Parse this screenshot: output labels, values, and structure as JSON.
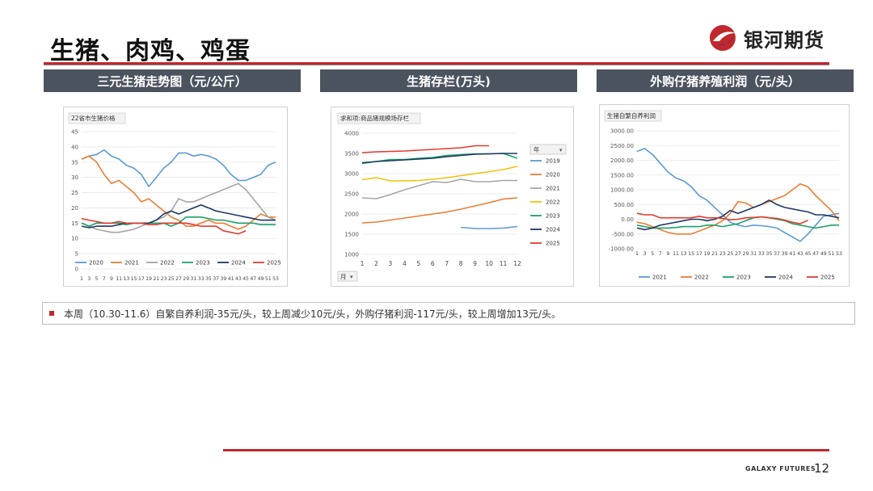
{
  "page": {
    "title": "生猪、肉鸡、鸡蛋",
    "logo_text": "银河期货",
    "footer_brand": "GALAXY FUTURES",
    "page_number": "12",
    "accent": "#c0282d"
  },
  "headers": [
    "三元生猪走势图（元/公斤）",
    "生猪存栏(万头)",
    "外购仔猪养殖利润（元/头）"
  ],
  "note": "本周（10.30-11.6）自繁自养利润-35元/头，较上周减少10元/头，外购仔猪利润-117元/头，较上周增加13元/头。",
  "chart_data": [
    {
      "type": "line",
      "title": "22省市生猪价格",
      "x_tick_labels": [
        "1",
        "3",
        "5",
        "7",
        "9",
        "11",
        "13",
        "15",
        "17",
        "19",
        "21",
        "23",
        "25",
        "27",
        "29",
        "31",
        "33",
        "35",
        "37",
        "39",
        "41",
        "43",
        "45",
        "47",
        "49",
        "51",
        "53"
      ],
      "xlim": [
        1,
        53
      ],
      "ylim": [
        0,
        45
      ],
      "yticks": [
        0,
        5,
        10,
        15,
        20,
        25,
        30,
        35,
        40,
        45
      ],
      "legend_position": "bottom",
      "series": [
        {
          "name": "2020",
          "color": "#5b9bd5",
          "x": [
            1,
            3,
            5,
            7,
            9,
            11,
            13,
            15,
            17,
            19,
            21,
            23,
            25,
            27,
            29,
            31,
            33,
            35,
            37,
            39,
            41,
            43,
            45,
            47,
            49,
            51,
            53
          ],
          "values": [
            36,
            37,
            37.5,
            39,
            37,
            36,
            34,
            33,
            31,
            27,
            30,
            33,
            35,
            38,
            38,
            37,
            37.5,
            37,
            36,
            34,
            31,
            29,
            29,
            30,
            31,
            34,
            35
          ]
        },
        {
          "name": "2021",
          "color": "#ed7d31",
          "x": [
            1,
            3,
            5,
            7,
            9,
            11,
            13,
            15,
            17,
            19,
            21,
            23,
            25,
            27,
            29,
            31,
            33,
            35,
            37,
            39,
            41,
            43,
            45,
            47,
            49,
            51,
            53
          ],
          "values": [
            36,
            37,
            35,
            31,
            28,
            29,
            27,
            25,
            22,
            23,
            21,
            19,
            17,
            16,
            14,
            14,
            15,
            16,
            15,
            15,
            14,
            13,
            14,
            16,
            18,
            17,
            17
          ]
        },
        {
          "name": "2022",
          "color": "#a5a5a5",
          "x": [
            1,
            3,
            5,
            7,
            9,
            11,
            13,
            15,
            17,
            19,
            21,
            23,
            25,
            27,
            29,
            31,
            33,
            35,
            37,
            39,
            41,
            43,
            45,
            47,
            49,
            51,
            53
          ],
          "values": [
            15,
            14,
            13,
            12.5,
            12,
            12,
            12.5,
            13,
            14,
            15,
            16,
            17,
            19,
            23,
            22,
            22,
            23,
            24,
            25,
            26,
            27,
            28,
            26,
            23,
            20,
            17,
            16
          ]
        },
        {
          "name": "2023",
          "color": "#1aa368",
          "x": [
            1,
            3,
            5,
            7,
            9,
            11,
            13,
            15,
            17,
            19,
            21,
            23,
            25,
            27,
            29,
            31,
            33,
            35,
            37,
            39,
            41,
            43,
            45,
            47,
            49,
            51,
            53
          ],
          "values": [
            15,
            14,
            15,
            15,
            15,
            15,
            14.5,
            15,
            15,
            15,
            15,
            15,
            14,
            15,
            17,
            17,
            17,
            16.5,
            16,
            16,
            15.5,
            15,
            15,
            15,
            14.5,
            14.5,
            14.5
          ]
        },
        {
          "name": "2024",
          "color": "#1f3864",
          "x": [
            1,
            3,
            5,
            7,
            9,
            11,
            13,
            15,
            17,
            19,
            21,
            23,
            25,
            27,
            29,
            31,
            33,
            35,
            37,
            39,
            41,
            43,
            45,
            47,
            49,
            51,
            53
          ],
          "values": [
            14,
            13.5,
            14,
            14,
            14,
            14.5,
            15,
            15,
            15,
            15,
            16,
            18,
            19,
            18,
            19,
            20,
            21,
            20,
            19,
            18.5,
            18,
            17.5,
            17,
            16.5,
            16,
            16,
            16
          ]
        },
        {
          "name": "2025",
          "color": "#e23b2e",
          "x": [
            1,
            3,
            5,
            7,
            9,
            11,
            13,
            15,
            17,
            19,
            21,
            23,
            25,
            27,
            29,
            31,
            33,
            35,
            37,
            39,
            41,
            43,
            45
          ],
          "values": [
            16.5,
            16,
            15.5,
            15,
            15,
            15.5,
            15,
            15,
            15,
            14.5,
            14.5,
            15,
            15,
            15,
            15,
            14.5,
            14,
            14,
            14,
            12.5,
            12,
            11.5,
            12.5
          ]
        }
      ]
    },
    {
      "type": "line",
      "title": "求和项:商品猪规模场存栏",
      "filter_label": "月",
      "legend_title": "年",
      "x_tick_labels": [
        "1",
        "2",
        "3",
        "4",
        "5",
        "6",
        "7",
        "8",
        "9",
        "10",
        "11",
        "12"
      ],
      "xlim": [
        1,
        12
      ],
      "ylim": [
        1000,
        4000
      ],
      "yticks": [
        1000,
        1500,
        2000,
        2500,
        3000,
        3500,
        4000
      ],
      "legend_position": "right",
      "series": [
        {
          "name": "2019",
          "color": "#5b9bd5",
          "x": [
            8,
            9,
            10,
            11,
            12
          ],
          "values": [
            1670,
            1640,
            1640,
            1650,
            1690
          ]
        },
        {
          "name": "2020",
          "color": "#ed7d31",
          "x": [
            1,
            2,
            3,
            4,
            5,
            6,
            7,
            8,
            9,
            10,
            11,
            12
          ],
          "values": [
            1780,
            1800,
            1850,
            1900,
            1950,
            2000,
            2050,
            2120,
            2200,
            2280,
            2370,
            2400
          ]
        },
        {
          "name": "2021",
          "color": "#a5a5a5",
          "x": [
            1,
            2,
            3,
            4,
            5,
            6,
            7,
            8,
            9,
            10,
            11,
            12
          ],
          "values": [
            2400,
            2380,
            2480,
            2600,
            2700,
            2800,
            2780,
            2860,
            2800,
            2800,
            2830,
            2830
          ]
        },
        {
          "name": "2022",
          "color": "#f2c20b",
          "x": [
            1,
            2,
            3,
            4,
            5,
            6,
            7,
            8,
            9,
            10,
            11,
            12
          ],
          "values": [
            2850,
            2900,
            2820,
            2820,
            2830,
            2860,
            2900,
            2950,
            3000,
            3050,
            3100,
            3180
          ]
        },
        {
          "name": "2023",
          "color": "#1aa368",
          "x": [
            1,
            2,
            3,
            4,
            5,
            6,
            7,
            8,
            9,
            10,
            11,
            12
          ],
          "values": [
            3250,
            3300,
            3350,
            3350,
            3380,
            3400,
            3450,
            3470,
            3490,
            3490,
            3500,
            3380
          ]
        },
        {
          "name": "2024",
          "color": "#1f3864",
          "x": [
            1,
            2,
            3,
            4,
            5,
            6,
            7,
            8,
            9,
            10,
            11,
            12
          ],
          "values": [
            3270,
            3300,
            3320,
            3340,
            3360,
            3380,
            3420,
            3450,
            3480,
            3490,
            3500,
            3500
          ]
        },
        {
          "name": "2025",
          "color": "#e23b2e",
          "x": [
            1,
            2,
            3,
            4,
            5,
            6,
            7,
            8,
            9,
            10
          ],
          "values": [
            3520,
            3540,
            3550,
            3560,
            3580,
            3600,
            3620,
            3640,
            3690,
            3690
          ]
        }
      ]
    },
    {
      "type": "line",
      "title": "生猪自繁自养利润",
      "x_tick_labels": [
        "1",
        "3",
        "5",
        "7",
        "9",
        "11",
        "13",
        "15",
        "17",
        "19",
        "21",
        "23",
        "25",
        "27",
        "29",
        "31",
        "33",
        "35",
        "37",
        "39",
        "41",
        "43",
        "45",
        "47",
        "49",
        "51",
        "53"
      ],
      "xlim": [
        1,
        53
      ],
      "ylim": [
        -1000,
        3000
      ],
      "yticks": [
        "-1000.00",
        "-500.00",
        "0.00",
        "500.00",
        "1000.00",
        "1500.00",
        "2000.00",
        "2500.00",
        "3000.00"
      ],
      "legend_position": "bottom",
      "series": [
        {
          "name": "2021",
          "color": "#5b9bd5",
          "x": [
            1,
            3,
            5,
            7,
            9,
            11,
            13,
            15,
            17,
            19,
            21,
            23,
            25,
            27,
            29,
            31,
            33,
            35,
            37,
            39,
            41,
            43,
            45,
            47,
            49,
            51,
            53
          ],
          "values": [
            2300,
            2400,
            2200,
            1900,
            1600,
            1400,
            1300,
            1100,
            800,
            650,
            400,
            150,
            -100,
            -200,
            -250,
            -200,
            -220,
            -250,
            -300,
            -450,
            -600,
            -750,
            -500,
            -200,
            100,
            150,
            200
          ]
        },
        {
          "name": "2022",
          "color": "#ed7d31",
          "x": [
            1,
            3,
            5,
            7,
            9,
            11,
            13,
            15,
            17,
            19,
            21,
            23,
            25,
            27,
            29,
            31,
            33,
            35,
            37,
            39,
            41,
            43,
            45,
            47,
            49,
            51,
            53
          ],
          "values": [
            -100,
            -150,
            -250,
            -350,
            -450,
            -500,
            -500,
            -500,
            -400,
            -300,
            -200,
            -50,
            200,
            600,
            550,
            400,
            500,
            600,
            700,
            800,
            1000,
            1200,
            1100,
            800,
            550,
            300,
            -50
          ]
        },
        {
          "name": "2023",
          "color": "#1aa368",
          "x": [
            1,
            3,
            5,
            7,
            9,
            11,
            13,
            15,
            17,
            19,
            21,
            23,
            25,
            27,
            29,
            31,
            33,
            35,
            37,
            39,
            41,
            43,
            45,
            47,
            49,
            51,
            53
          ],
          "values": [
            -200,
            -250,
            -300,
            -300,
            -300,
            -280,
            -250,
            -250,
            -250,
            -200,
            -200,
            -250,
            -200,
            -150,
            -50,
            50,
            80,
            50,
            0,
            -50,
            -150,
            -200,
            -250,
            -300,
            -250,
            -200,
            -200
          ]
        },
        {
          "name": "2024",
          "color": "#1f3864",
          "x": [
            1,
            3,
            5,
            7,
            9,
            11,
            13,
            15,
            17,
            19,
            21,
            23,
            25,
            27,
            29,
            31,
            33,
            35,
            37,
            39,
            41,
            43,
            45,
            47,
            49,
            51,
            53
          ],
          "values": [
            -300,
            -350,
            -300,
            -200,
            -150,
            -100,
            -50,
            0,
            0,
            -50,
            0,
            100,
            300,
            200,
            300,
            400,
            500,
            650,
            500,
            400,
            350,
            300,
            250,
            150,
            150,
            100,
            50
          ]
        },
        {
          "name": "2025",
          "color": "#e23b2e",
          "x": [
            1,
            3,
            5,
            7,
            9,
            11,
            13,
            15,
            17,
            19,
            21,
            23,
            25,
            27,
            29,
            31,
            33,
            35,
            37,
            39,
            41,
            43,
            45
          ],
          "values": [
            200,
            150,
            150,
            50,
            50,
            50,
            50,
            50,
            100,
            50,
            50,
            30,
            -20,
            0,
            50,
            60,
            80,
            50,
            30,
            -30,
            -100,
            -150,
            -35
          ]
        }
      ]
    }
  ]
}
